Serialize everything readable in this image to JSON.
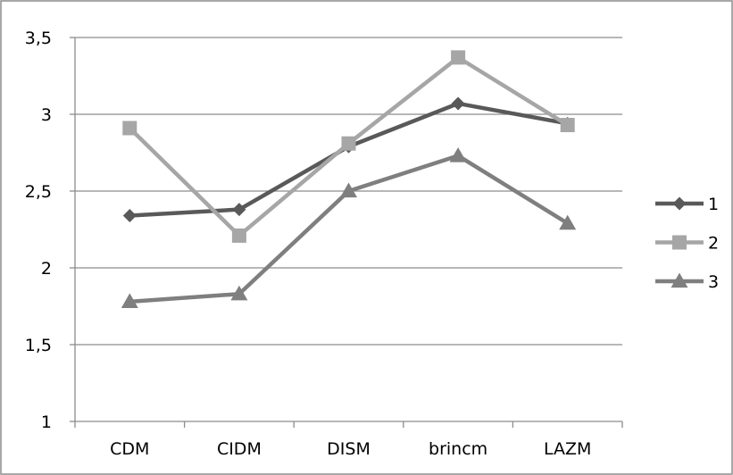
{
  "chart_data": {
    "type": "line",
    "title": "",
    "xlabel": "",
    "ylabel": "",
    "categories": [
      "CDM",
      "CIDM",
      "DISM",
      "brincm",
      "LAZM"
    ],
    "ylim": [
      1,
      3.5
    ],
    "yticks": [
      "1",
      "1,5",
      "2",
      "2,5",
      "3",
      "3,5"
    ],
    "ytick_values": [
      1,
      1.5,
      2,
      2.5,
      3,
      3.5
    ],
    "grid": true,
    "legend_position": "right",
    "series": [
      {
        "name": "1",
        "values": [
          2.34,
          2.38,
          2.79,
          3.07,
          2.94
        ],
        "color": "#595959",
        "marker": "diamond"
      },
      {
        "name": "2",
        "values": [
          2.91,
          2.21,
          2.81,
          3.37,
          2.93
        ],
        "color": "#a6a6a6",
        "marker": "square"
      },
      {
        "name": "3",
        "values": [
          1.78,
          1.83,
          2.5,
          2.73,
          2.29
        ],
        "color": "#7f7f7f",
        "marker": "triangle"
      }
    ]
  }
}
